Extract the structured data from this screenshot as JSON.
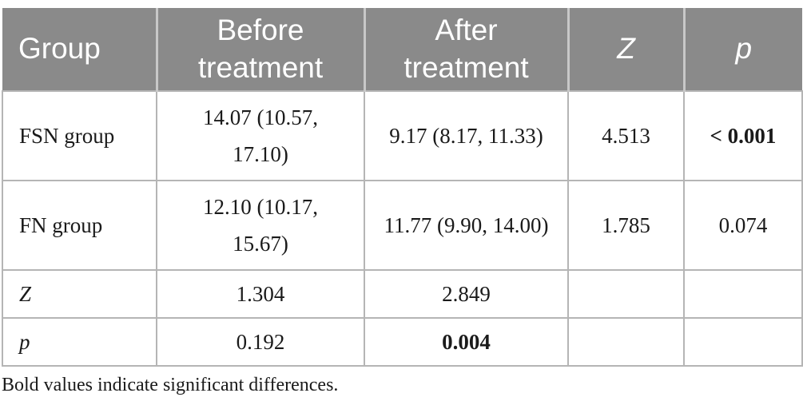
{
  "header": {
    "group": "Group",
    "before": "Before treatment",
    "after": "After treatment",
    "z": "Z",
    "p": "p"
  },
  "rows": {
    "fsn": {
      "label": "FSN group",
      "before": "14.07 (10.57, 17.10)",
      "after": "9.17 (8.17, 11.33)",
      "z": "4.513",
      "p": "< 0.001"
    },
    "fn": {
      "label": "FN group",
      "before": "12.10 (10.17, 15.67)",
      "after": "11.77 (9.90, 14.00)",
      "z": "1.785",
      "p": "0.074"
    },
    "zrow": {
      "label": "Z",
      "before": "1.304",
      "after": "2.849",
      "z": "",
      "p": ""
    },
    "prow": {
      "label": "p",
      "before": "0.192",
      "after": "0.004",
      "z": "",
      "p": ""
    }
  },
  "footnote": "Bold values indicate significant differences.",
  "colors": {
    "header_bg": "#8a8a8a",
    "header_text": "#ffffff",
    "border": "#b5b5b5",
    "body_text": "#1a1a1a"
  },
  "significance": {
    "bold_cells": [
      "fsn.p",
      "prow.after"
    ],
    "note": "bold indicates significant difference"
  }
}
